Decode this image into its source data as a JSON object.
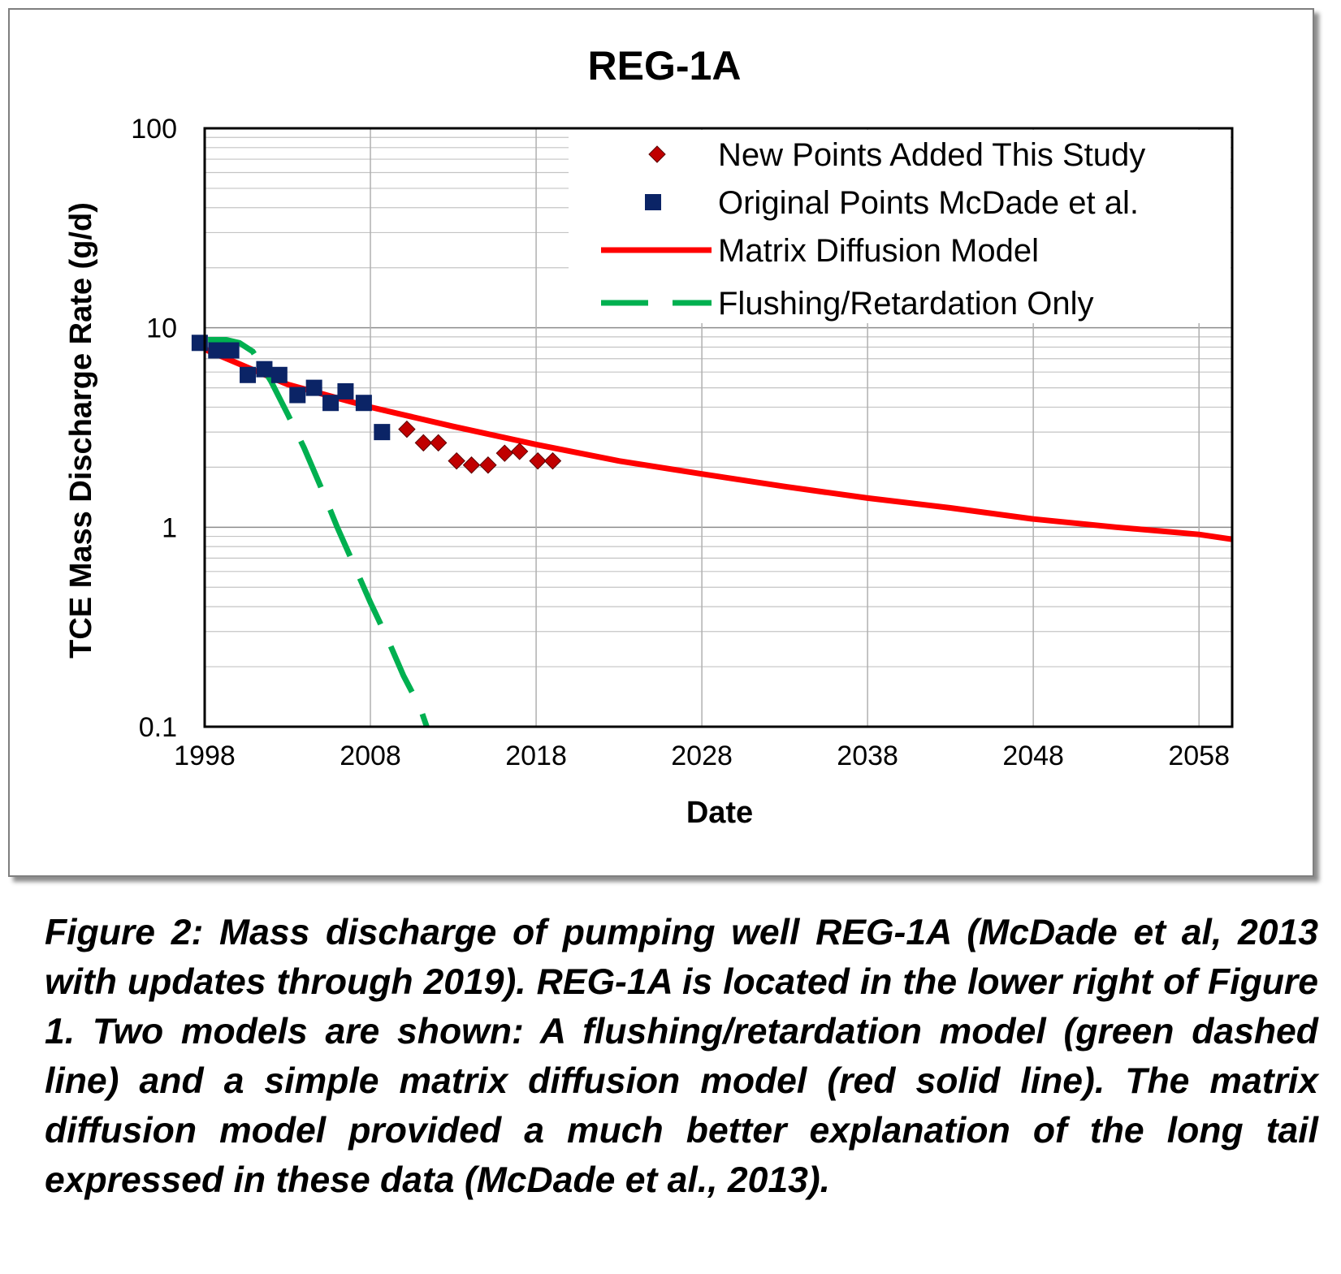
{
  "chart_data": {
    "type": "scatter",
    "title": "REG-1A",
    "xlabel": "Date",
    "ylabel": "TCE Mass Discharge Rate (g/d)",
    "x_scale": "linear",
    "y_scale": "log",
    "xlim": [
      1998,
      2060
    ],
    "ylim": [
      0.1,
      100
    ],
    "x_ticks": [
      "1998",
      "2008",
      "2018",
      "2028",
      "2038",
      "2048",
      "2058"
    ],
    "y_ticks": [
      "0.1",
      "1",
      "10",
      "100"
    ],
    "grid": true,
    "legend_position": "top-right",
    "series": [
      {
        "name": "New Points Added This Study",
        "kind": "markers",
        "marker": "diamond",
        "color": "#c00000",
        "points": [
          [
            2010.2,
            3.1
          ],
          [
            2011.2,
            2.65
          ],
          [
            2012.1,
            2.65
          ],
          [
            2013.2,
            2.15
          ],
          [
            2014.1,
            2.05
          ],
          [
            2015.1,
            2.05
          ],
          [
            2016.1,
            2.35
          ],
          [
            2017.0,
            2.4
          ],
          [
            2018.1,
            2.15
          ],
          [
            2019.0,
            2.15
          ]
        ]
      },
      {
        "name": "Original Points McDade et al.",
        "kind": "markers",
        "marker": "square",
        "color": "#0b2466",
        "points": [
          [
            1997.7,
            8.4
          ],
          [
            1998.7,
            7.7
          ],
          [
            1999.6,
            7.7
          ],
          [
            2000.6,
            5.8
          ],
          [
            2001.6,
            6.2
          ],
          [
            2002.5,
            5.8
          ],
          [
            2003.6,
            4.6
          ],
          [
            2004.6,
            5.0
          ],
          [
            2005.6,
            4.2
          ],
          [
            2006.5,
            4.8
          ],
          [
            2007.6,
            4.2
          ],
          [
            2008.7,
            3.0
          ]
        ]
      },
      {
        "name": "Matrix Diffusion Model",
        "kind": "line",
        "color": "#ff0000",
        "points": [
          [
            1998,
            7.8
          ],
          [
            2003,
            5.2
          ],
          [
            2008,
            4.0
          ],
          [
            2013,
            3.2
          ],
          [
            2018,
            2.6
          ],
          [
            2023,
            2.15
          ],
          [
            2028,
            1.85
          ],
          [
            2033,
            1.6
          ],
          [
            2038,
            1.4
          ],
          [
            2043,
            1.25
          ],
          [
            2048,
            1.1
          ],
          [
            2053,
            1.0
          ],
          [
            2058,
            0.92
          ],
          [
            2060,
            0.87
          ]
        ]
      },
      {
        "name": "Flushing/Retardation Only",
        "kind": "dashed-line",
        "color": "#00b050",
        "points": [
          [
            1998.2,
            8.7
          ],
          [
            1999.3,
            8.7
          ],
          [
            2000.1,
            8.4
          ],
          [
            2000.9,
            7.6
          ],
          [
            2002.0,
            5.4
          ],
          [
            2003.0,
            3.7
          ],
          [
            2004.0,
            2.5
          ],
          [
            2005.0,
            1.6
          ],
          [
            2006.0,
            1.0
          ],
          [
            2007.0,
            0.65
          ],
          [
            2008.0,
            0.42
          ],
          [
            2009.0,
            0.28
          ],
          [
            2010.0,
            0.18
          ],
          [
            2011.0,
            0.125
          ],
          [
            2011.4,
            0.1
          ]
        ]
      }
    ]
  },
  "caption": "Figure 2:  Mass discharge of pumping well REG-1A (McDade et al, 2013 with updates through 2019).  REG-1A is located in the lower right of Figure 1.  Two models are shown:  A flushing/retardation model (green dashed line) and a simple matrix diffusion model (red solid line).  The matrix diffusion model provided a much better explanation of the long tail expressed in these data (McDade et al., 2013)."
}
